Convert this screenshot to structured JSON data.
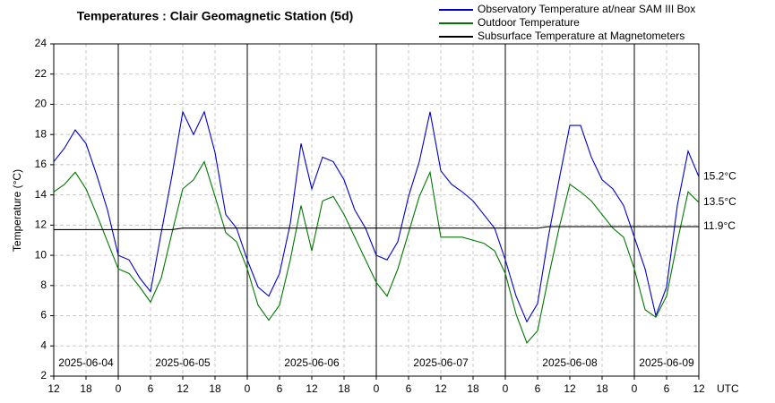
{
  "chart_data": {
    "type": "line",
    "title": "Temperatures : Clair Geomagnetic Station (5d)",
    "y_label": "Temperature (°C)",
    "x_label": "UTC",
    "x": [
      0,
      2,
      4,
      6,
      8,
      10,
      12,
      14,
      16,
      18,
      20,
      22,
      24,
      26,
      28,
      30,
      32,
      34,
      36,
      38,
      40,
      42,
      44,
      46,
      48,
      50,
      52,
      54,
      56,
      58,
      60,
      62,
      64,
      66,
      68,
      70,
      72,
      74,
      76,
      78,
      80,
      82,
      84,
      86,
      88,
      90,
      92,
      94,
      96,
      98,
      100,
      102,
      104,
      106,
      108,
      110,
      112,
      114,
      116,
      118,
      120
    ],
    "series": [
      {
        "name": "Observatory Temperature at/near SAM III Box",
        "color": "#0000cc",
        "end_label": "15.2°C",
        "values": [
          16.2,
          17.1,
          18.3,
          17.4,
          15.3,
          13.0,
          10.0,
          9.7,
          8.5,
          7.6,
          11.5,
          15.3,
          19.5,
          18.0,
          19.5,
          16.8,
          12.7,
          11.8,
          9.7,
          7.9,
          7.3,
          8.8,
          12.1,
          17.4,
          14.4,
          16.5,
          16.2,
          15.0,
          13.0,
          11.8,
          10.0,
          9.7,
          10.9,
          13.9,
          16.2,
          19.5,
          15.6,
          14.7,
          14.2,
          13.6,
          12.7,
          11.8,
          9.7,
          7.3,
          5.6,
          6.8,
          11.2,
          15.0,
          18.6,
          18.6,
          16.5,
          15.0,
          14.4,
          13.3,
          11.2,
          9.1,
          6.0,
          7.9,
          13.3,
          16.9,
          15.2
        ]
      },
      {
        "name": "Outdoor Temperature",
        "color": "#007700",
        "end_label": "13.5°C",
        "values": [
          14.2,
          14.7,
          15.5,
          14.4,
          12.7,
          10.9,
          9.1,
          8.8,
          7.9,
          6.9,
          8.5,
          11.5,
          14.4,
          15.0,
          16.2,
          13.9,
          11.5,
          10.9,
          9.1,
          6.7,
          5.7,
          6.7,
          9.7,
          13.3,
          10.3,
          13.6,
          13.9,
          12.7,
          11.2,
          9.7,
          8.2,
          7.3,
          9.1,
          11.5,
          13.9,
          15.5,
          11.2,
          11.2,
          11.2,
          11.0,
          10.8,
          10.3,
          8.8,
          6.1,
          4.2,
          5.0,
          8.5,
          11.8,
          14.7,
          14.2,
          13.6,
          12.7,
          11.8,
          11.2,
          9.1,
          6.4,
          5.9,
          7.3,
          10.9,
          14.2,
          13.5
        ]
      },
      {
        "name": "Subsurface Temperature at Magnetometers",
        "color": "#000000",
        "end_label": "11.9°C",
        "values": [
          11.7,
          11.7,
          11.7,
          11.7,
          11.7,
          11.7,
          11.7,
          11.7,
          11.7,
          11.7,
          11.7,
          11.7,
          11.8,
          11.8,
          11.8,
          11.8,
          11.8,
          11.8,
          11.8,
          11.8,
          11.8,
          11.8,
          11.8,
          11.8,
          11.8,
          11.8,
          11.8,
          11.8,
          11.8,
          11.8,
          11.8,
          11.8,
          11.8,
          11.8,
          11.8,
          11.8,
          11.8,
          11.8,
          11.8,
          11.8,
          11.8,
          11.8,
          11.8,
          11.8,
          11.8,
          11.8,
          11.9,
          11.9,
          11.9,
          11.9,
          11.9,
          11.9,
          11.9,
          11.9,
          11.9,
          11.9,
          11.9,
          11.9,
          11.9,
          11.9,
          11.9
        ]
      }
    ],
    "xlim": [
      0,
      120
    ],
    "ylim": [
      2,
      24
    ],
    "yticks": [
      2,
      4,
      6,
      8,
      10,
      12,
      14,
      16,
      18,
      20,
      22,
      24
    ],
    "xticks": [
      {
        "value": 0,
        "label": "12"
      },
      {
        "value": 6,
        "label": "18"
      },
      {
        "value": 12,
        "label": "0"
      },
      {
        "value": 18,
        "label": "6"
      },
      {
        "value": 24,
        "label": "12"
      },
      {
        "value": 30,
        "label": "18"
      },
      {
        "value": 36,
        "label": "0"
      },
      {
        "value": 42,
        "label": "6"
      },
      {
        "value": 48,
        "label": "12"
      },
      {
        "value": 54,
        "label": "18"
      },
      {
        "value": 60,
        "label": "0"
      },
      {
        "value": 66,
        "label": "6"
      },
      {
        "value": 72,
        "label": "12"
      },
      {
        "value": 78,
        "label": "18"
      },
      {
        "value": 84,
        "label": "0"
      },
      {
        "value": 90,
        "label": "6"
      },
      {
        "value": 96,
        "label": "12"
      },
      {
        "value": 102,
        "label": "18"
      },
      {
        "value": 108,
        "label": "0"
      },
      {
        "value": 114,
        "label": "6"
      },
      {
        "value": 120,
        "label": "12"
      }
    ],
    "day_boundaries": [
      12,
      36,
      60,
      84,
      108
    ],
    "day_labels": [
      {
        "value": 6,
        "label": "2025-06-04"
      },
      {
        "value": 24,
        "label": "2025-06-05"
      },
      {
        "value": 48,
        "label": "2025-06-06"
      },
      {
        "value": 72,
        "label": "2025-06-07"
      },
      {
        "value": 96,
        "label": "2025-06-08"
      },
      {
        "value": 114,
        "label": "2025-06-09"
      }
    ],
    "grid": true
  }
}
